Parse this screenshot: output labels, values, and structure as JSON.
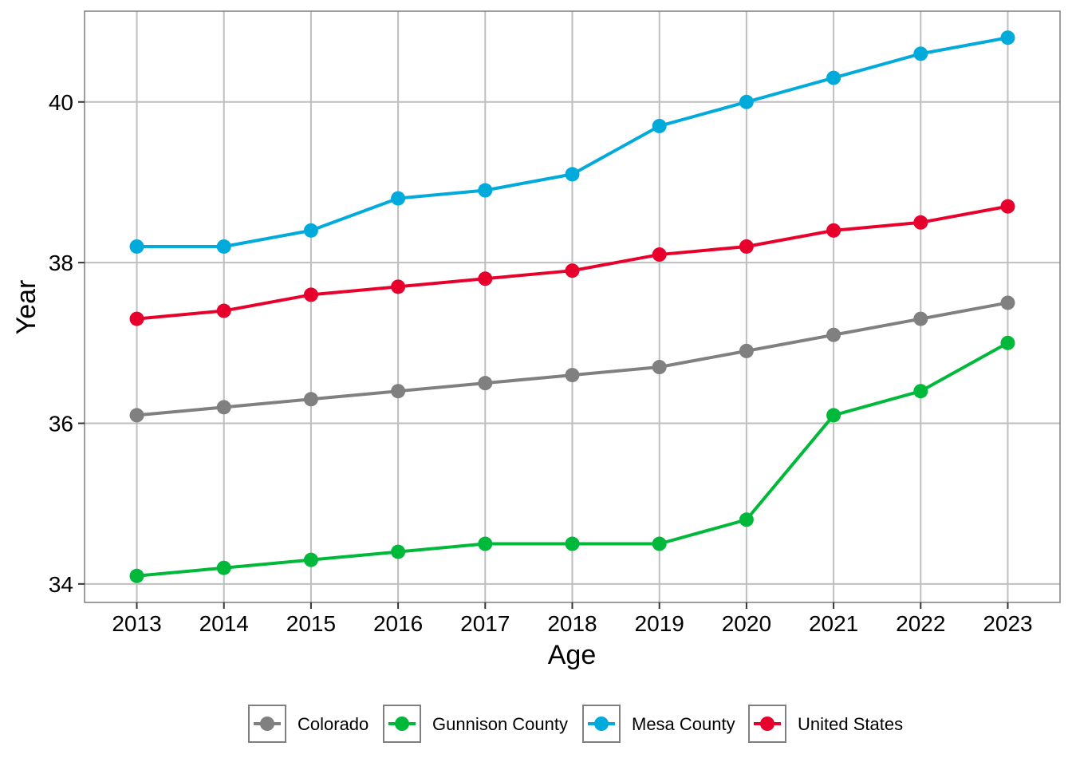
{
  "chart_data": {
    "type": "line",
    "title": "",
    "xlabel": "Age",
    "ylabel": "Year",
    "x": [
      2013,
      2014,
      2015,
      2016,
      2017,
      2018,
      2019,
      2020,
      2021,
      2022,
      2023
    ],
    "x_tick_labels": [
      "2013",
      "2014",
      "2015",
      "2016",
      "2017",
      "2018",
      "2019",
      "2020",
      "2021",
      "2022",
      "2023"
    ],
    "y_ticks": [
      34,
      36,
      38,
      40
    ],
    "y_tick_labels": [
      "34",
      "36",
      "38",
      "40"
    ],
    "xlim": [
      2012.4,
      2023.6
    ],
    "ylim": [
      33.77,
      41.13
    ],
    "grid": true,
    "legend_position": "bottom",
    "series": [
      {
        "name": "Colorado",
        "color": "#808080",
        "values": [
          36.1,
          36.2,
          36.3,
          36.4,
          36.5,
          36.6,
          36.7,
          36.9,
          37.1,
          37.3,
          37.5
        ]
      },
      {
        "name": "Gunnison County",
        "color": "#00B83A",
        "values": [
          34.1,
          34.2,
          34.3,
          34.4,
          34.5,
          34.5,
          34.5,
          34.8,
          36.1,
          36.4,
          37.0
        ]
      },
      {
        "name": "Mesa County",
        "color": "#00AADB",
        "values": [
          38.2,
          38.2,
          38.4,
          38.8,
          38.9,
          39.1,
          39.7,
          40.0,
          40.3,
          40.6,
          40.8
        ]
      },
      {
        "name": "United States",
        "color": "#E8002D",
        "values": [
          37.3,
          37.4,
          37.6,
          37.7,
          37.8,
          37.9,
          38.1,
          38.2,
          38.4,
          38.5,
          38.7
        ]
      }
    ]
  }
}
